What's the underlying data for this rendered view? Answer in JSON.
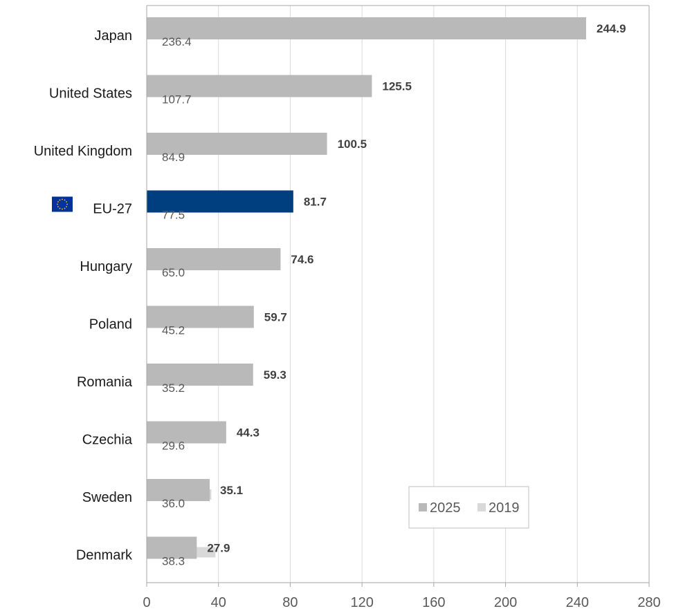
{
  "chart_data": {
    "type": "bar",
    "orientation": "horizontal",
    "categories": [
      "Japan",
      "United States",
      "United Kingdom",
      "EU-27",
      "Hungary",
      "Poland",
      "Romania",
      "Czechia",
      "Sweden",
      "Denmark"
    ],
    "series": [
      {
        "name": "2025",
        "values": [
          244.9,
          125.5,
          100.5,
          81.7,
          74.6,
          59.7,
          59.3,
          44.3,
          35.1,
          27.9
        ]
      },
      {
        "name": "2019",
        "values": [
          236.4,
          107.7,
          84.9,
          77.5,
          65.0,
          45.2,
          35.2,
          29.6,
          36.0,
          38.3
        ]
      }
    ],
    "value_labels": {
      "2025": [
        "244.9",
        "125.5",
        "100.5",
        "81.7",
        "74.6",
        "59.7",
        "59.3",
        "44.3",
        "35.1",
        "27.9"
      ],
      "2019": [
        "236.4",
        "107.7",
        "84.9",
        "77.5",
        "65.0",
        "45.2",
        "35.2",
        "29.6",
        "36.0",
        "38.3"
      ]
    },
    "xlim": [
      0,
      280
    ],
    "xticks": [
      0,
      40,
      80,
      120,
      160,
      200,
      240,
      280
    ],
    "xtick_labels": [
      "0",
      "40",
      "80",
      "120",
      "160",
      "200",
      "240",
      "280"
    ],
    "highlight_category": "EU-27",
    "highlight_icon": "eu-flag-icon",
    "grid": "vertical",
    "legend_position": "bottom-right",
    "colors": {
      "2025": "#b9b9b9",
      "2019": "#d9d9d9",
      "highlight_2025": "#003f7f",
      "highlight_2019": "#bfd4ef",
      "grid": "#d9d9d9",
      "axis": "#a6a6a6"
    }
  }
}
